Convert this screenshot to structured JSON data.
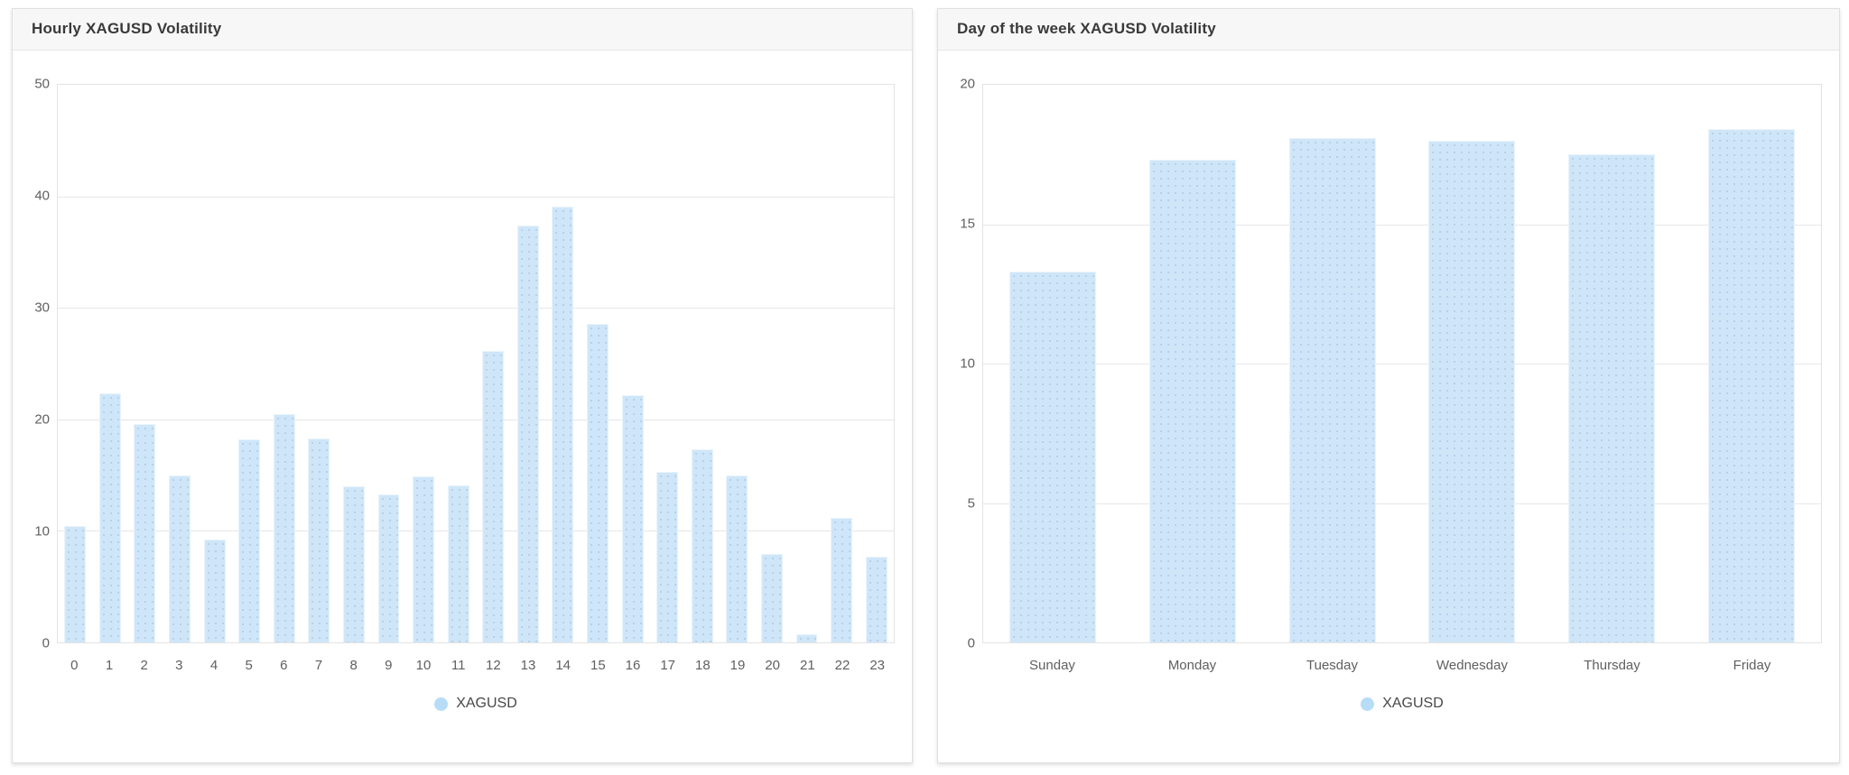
{
  "colors": {
    "bar_fill": "#cfe6f9",
    "bar_dot_pattern": "#b4cfe7",
    "legend_marker": "#b7dcf6",
    "gridline": "#e7e7e7",
    "card_header_bg": "#f7f7f7",
    "title_text": "#3a3a3a",
    "axis_text": "#606060"
  },
  "chart_data": [
    {
      "type": "bar",
      "title": "Hourly XAGUSD Volatility",
      "legend": "XAGUSD",
      "categories": [
        "0",
        "1",
        "2",
        "3",
        "4",
        "5",
        "6",
        "7",
        "8",
        "9",
        "10",
        "11",
        "12",
        "13",
        "14",
        "15",
        "16",
        "17",
        "18",
        "19",
        "20",
        "21",
        "22",
        "23"
      ],
      "values": [
        10.4,
        22.3,
        19.6,
        15.0,
        9.2,
        18.2,
        20.5,
        18.3,
        14.0,
        13.3,
        14.9,
        14.1,
        26.1,
        37.4,
        39.1,
        28.6,
        22.2,
        15.3,
        17.3,
        15.0,
        7.9,
        0.7,
        11.2,
        7.7
      ],
      "xlabel": "",
      "ylabel": "",
      "ylim": [
        0,
        50
      ],
      "yticks": [
        0,
        10,
        20,
        30,
        40,
        50
      ],
      "grid": "on",
      "legend_position": "bottom"
    },
    {
      "type": "bar",
      "title": "Day of the week XAGUSD Volatility",
      "legend": "XAGUSD",
      "categories": [
        "Sunday",
        "Monday",
        "Tuesday",
        "Wednesday",
        "Thursday",
        "Friday"
      ],
      "values": [
        13.3,
        17.3,
        18.1,
        18.0,
        17.5,
        18.4
      ],
      "xlabel": "",
      "ylabel": "",
      "ylim": [
        0,
        20
      ],
      "yticks": [
        0,
        5,
        10,
        15,
        20
      ],
      "grid": "on",
      "legend_position": "bottom"
    }
  ]
}
